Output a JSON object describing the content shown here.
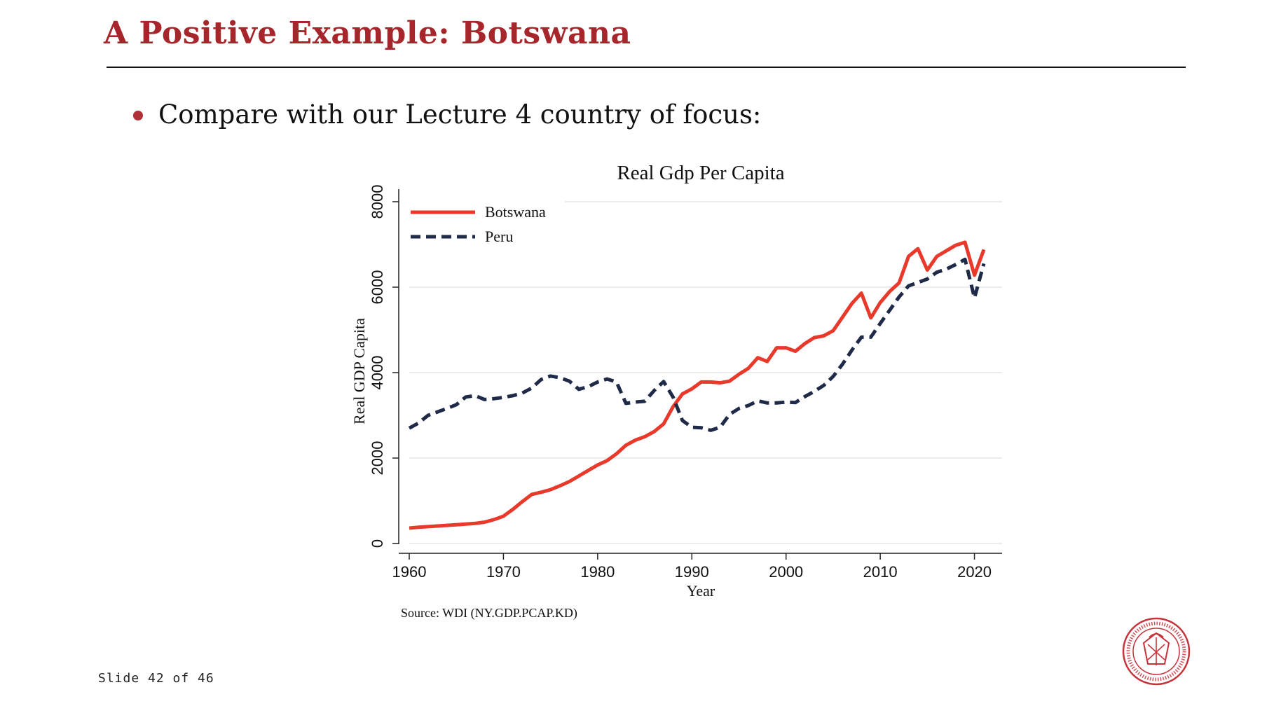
{
  "slide": {
    "title": "A Positive Example: Botswana",
    "bullet": "Compare with our Lecture 4 country of focus:",
    "slide_number": "Slide 42 of 46",
    "logo_ring_text": "CARNEGIE MELLON UNIVERSITY · PITTSBURGH PENNSYLVANIA 1900"
  },
  "colors": {
    "title": "#a6262b",
    "botswana": "#e8392b",
    "peru": "#1f2a48",
    "grid": "#e6e6e6",
    "seal": "#c8323a"
  },
  "chart_data": {
    "type": "line",
    "title": "Real Gdp Per Capita",
    "xlabel": "Year",
    "ylabel": "Real GDP Capita",
    "xlim": [
      1960,
      2021
    ],
    "ylim": [
      0,
      8000
    ],
    "x_ticks": [
      1960,
      1970,
      1980,
      1990,
      2000,
      2010,
      2020
    ],
    "y_ticks": [
      0,
      2000,
      4000,
      6000,
      8000
    ],
    "grid": true,
    "legend_position": "top-left",
    "source_note": "Source: WDI (NY.GDP.PCAP.KD)",
    "x": [
      1960,
      1961,
      1962,
      1963,
      1964,
      1965,
      1966,
      1967,
      1968,
      1969,
      1970,
      1971,
      1972,
      1973,
      1974,
      1975,
      1976,
      1977,
      1978,
      1979,
      1980,
      1981,
      1982,
      1983,
      1984,
      1985,
      1986,
      1987,
      1988,
      1989,
      1990,
      1991,
      1992,
      1993,
      1994,
      1995,
      1996,
      1997,
      1998,
      1999,
      2000,
      2001,
      2002,
      2003,
      2004,
      2005,
      2006,
      2007,
      2008,
      2009,
      2010,
      2011,
      2012,
      2013,
      2014,
      2015,
      2016,
      2017,
      2018,
      2019,
      2020,
      2021
    ],
    "series": [
      {
        "name": "Botswana",
        "style": "solid",
        "values": [
          360,
          380,
          395,
          410,
          425,
          440,
          455,
          470,
          500,
          560,
          640,
          800,
          980,
          1150,
          1200,
          1260,
          1350,
          1450,
          1580,
          1710,
          1840,
          1940,
          2100,
          2300,
          2420,
          2500,
          2620,
          2800,
          3200,
          3500,
          3620,
          3780,
          3780,
          3760,
          3800,
          3960,
          4100,
          4350,
          4260,
          4580,
          4580,
          4500,
          4680,
          4820,
          4860,
          4980,
          5300,
          5620,
          5860,
          5280,
          5640,
          5900,
          6100,
          6720,
          6900,
          6400,
          6720,
          6850,
          6980,
          7050,
          6280,
          6880
        ]
      },
      {
        "name": "Peru",
        "style": "dashed",
        "values": [
          2700,
          2820,
          3000,
          3080,
          3160,
          3250,
          3430,
          3460,
          3370,
          3390,
          3420,
          3460,
          3520,
          3640,
          3840,
          3920,
          3880,
          3800,
          3610,
          3670,
          3780,
          3850,
          3780,
          3280,
          3310,
          3330,
          3580,
          3790,
          3430,
          2880,
          2720,
          2710,
          2650,
          2720,
          3020,
          3160,
          3230,
          3340,
          3290,
          3290,
          3310,
          3300,
          3440,
          3560,
          3700,
          3910,
          4200,
          4530,
          4830,
          4830,
          5150,
          5460,
          5770,
          6030,
          6110,
          6190,
          6350,
          6420,
          6530,
          6650,
          5750,
          6550
        ]
      }
    ]
  }
}
